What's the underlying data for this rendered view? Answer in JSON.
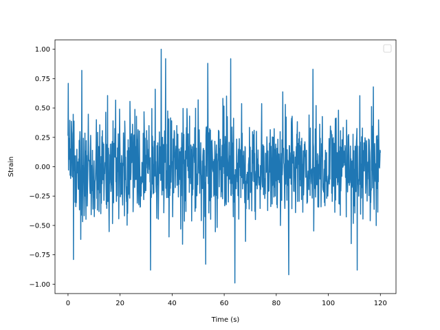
{
  "chart_data": {
    "type": "line",
    "xlabel": "Time (s)",
    "ylabel": "Strain",
    "xlim": [
      -5,
      126
    ],
    "ylim": [
      -1.08,
      1.08
    ],
    "x_range": [
      0,
      120
    ],
    "y_range": [
      -1.0,
      1.0
    ],
    "xticks": [
      0,
      20,
      40,
      60,
      80,
      100,
      120
    ],
    "xtick_labels": [
      "0",
      "20",
      "40",
      "60",
      "80",
      "100",
      "120"
    ],
    "yticks": [
      -1.0,
      -0.75,
      -0.5,
      -0.25,
      0.0,
      0.25,
      0.5,
      0.75,
      1.0
    ],
    "ytick_labels": [
      "−1.00",
      "−0.75",
      "−0.50",
      "−0.25",
      "0.00",
      "0.25",
      "0.50",
      "0.75",
      "1.00"
    ],
    "grid": false,
    "legend": {
      "placement": "upper right",
      "entries": []
    },
    "series": [
      {
        "color": "#1f77b4",
        "sample_rate_hz": 10,
        "noise_std": 0.22,
        "x_start": 0,
        "x_end": 120,
        "peaks": [
          {
            "x": 0.1,
            "y": 0.71
          },
          {
            "x": 5.3,
            "y": 0.82
          },
          {
            "x": 2.1,
            "y": -0.79
          },
          {
            "x": 31.7,
            "y": -0.88
          },
          {
            "x": 35.8,
            "y": 1.0
          },
          {
            "x": 37.5,
            "y": 0.92
          },
          {
            "x": 52.9,
            "y": -0.83
          },
          {
            "x": 53.7,
            "y": 0.88
          },
          {
            "x": 62.5,
            "y": 0.92
          },
          {
            "x": 64.1,
            "y": -0.99
          },
          {
            "x": 84.8,
            "y": -0.92
          },
          {
            "x": 94.1,
            "y": 0.83
          },
          {
            "x": 111.1,
            "y": -0.88
          },
          {
            "x": 117.3,
            "y": 0.68
          },
          {
            "x": 120.0,
            "y": 0.12
          }
        ]
      }
    ]
  }
}
